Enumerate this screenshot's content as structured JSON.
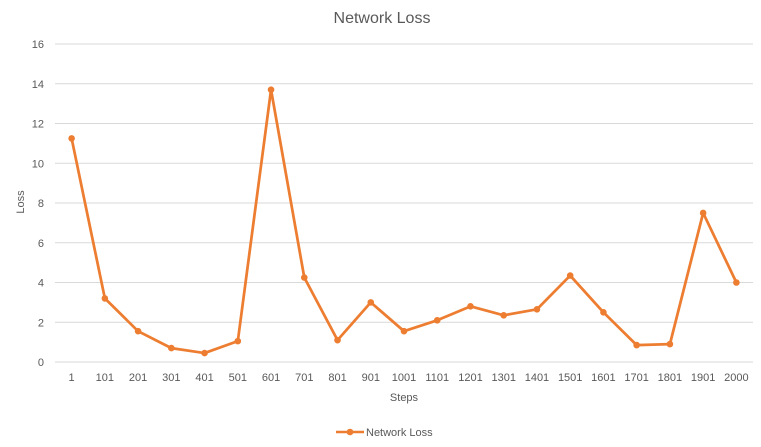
{
  "chart_data": {
    "type": "line",
    "title": "Network Loss",
    "xlabel": "Steps",
    "ylabel": "Loss",
    "ylim": [
      0,
      16
    ],
    "yticks": [
      0,
      2,
      4,
      6,
      8,
      10,
      12,
      14,
      16
    ],
    "grid": true,
    "legend_position": "bottom",
    "categories": [
      "1",
      "101",
      "201",
      "301",
      "401",
      "501",
      "601",
      "701",
      "801",
      "901",
      "1001",
      "1101",
      "1201",
      "1301",
      "1401",
      "1501",
      "1601",
      "1701",
      "1801",
      "1901",
      "2000"
    ],
    "series": [
      {
        "name": "Network Loss",
        "color": "#ED7D31",
        "values": [
          11.25,
          3.2,
          1.55,
          0.7,
          0.45,
          1.05,
          13.7,
          4.25,
          1.1,
          3.0,
          1.55,
          2.1,
          2.8,
          2.35,
          2.65,
          4.35,
          2.5,
          0.85,
          0.9,
          7.5,
          4.0
        ]
      }
    ]
  }
}
